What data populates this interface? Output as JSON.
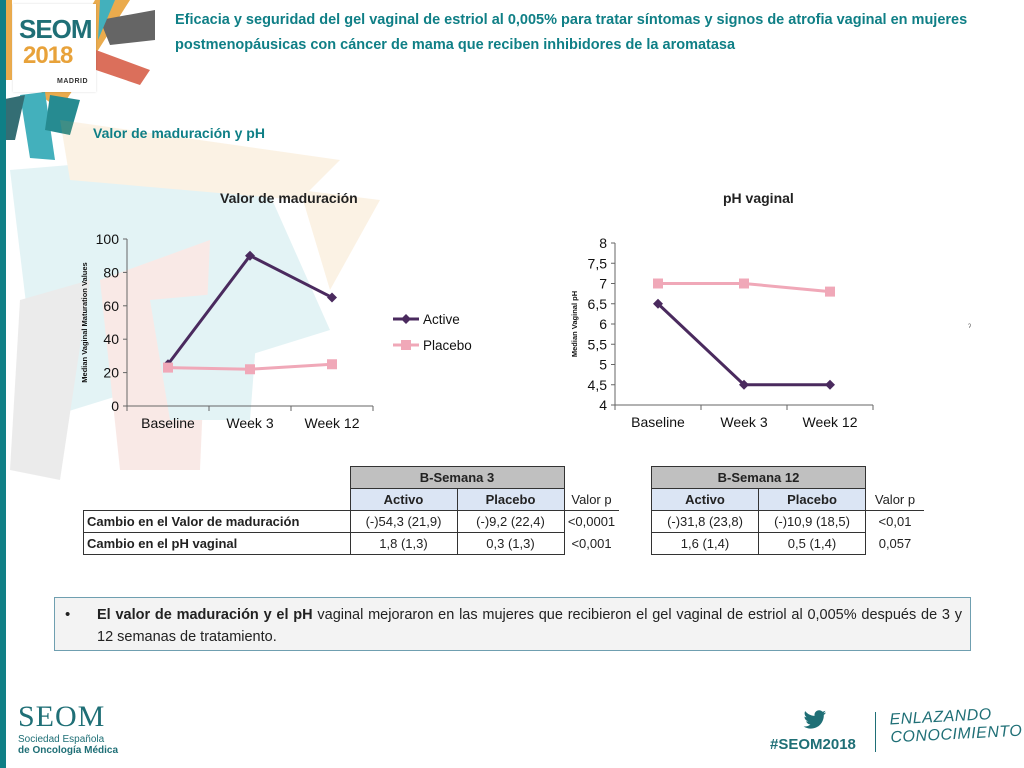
{
  "slide": {
    "title": "Eficacia y seguridad del gel vaginal de estriol al 0,005% para tratar síntomas y signos de atrofia vaginal en mujeres postmenopáusicas con cáncer de mama que reciben inhibidores de la aromatasa",
    "subtitle": "Valor de maduración y pH",
    "stray_mark": "ˀ"
  },
  "logo": {
    "brand": "SEOM",
    "year": "2018",
    "city": "MADRID"
  },
  "colors": {
    "active": "#4a2a5e",
    "placebo": "#f0a8b8",
    "accent": "#0f7f86"
  },
  "chart_data": [
    {
      "type": "line",
      "title": "Valor de maduración",
      "ylabel": "Median Vaginal Maturation Values",
      "categories": [
        "Baseline",
        "Week 3",
        "Week 12"
      ],
      "yticks": [
        "0",
        "20",
        "40",
        "60",
        "80",
        "100"
      ],
      "ylim": [
        0,
        100
      ],
      "series": [
        {
          "name": "Active",
          "values": [
            25,
            90,
            65
          ]
        },
        {
          "name": "Placebo",
          "values": [
            23,
            22,
            25
          ]
        }
      ],
      "legend": "right"
    },
    {
      "type": "line",
      "title": "pH vaginal",
      "ylabel": "Median Vaginal pH",
      "categories": [
        "Baseline",
        "Week 3",
        "Week 12"
      ],
      "yticks": [
        "4",
        "4,5",
        "5",
        "5,5",
        "6",
        "6,5",
        "7",
        "7,5",
        "8"
      ],
      "ylim": [
        4,
        8
      ],
      "series": [
        {
          "name": "Active",
          "values": [
            6.5,
            4.5,
            4.5
          ]
        },
        {
          "name": "Placebo",
          "values": [
            7.0,
            7.0,
            6.8
          ]
        }
      ]
    }
  ],
  "table1": {
    "group": "B-Semana 3",
    "col_active": "Activo",
    "col_placebo": "Placebo",
    "col_p": "Valor p",
    "rows": [
      {
        "label": "Cambio en el Valor de maduración",
        "active": "(-)54,3  (21,9)",
        "placebo": "(-)9,2  (22,4)",
        "p": "<0,0001"
      },
      {
        "label": "Cambio en el pH vaginal",
        "active": "1,8 (1,3)",
        "placebo": "0,3 (1,3)",
        "p": "<0,001"
      }
    ]
  },
  "table2": {
    "group": "B-Semana 12",
    "col_active": "Activo",
    "col_placebo": "Placebo",
    "col_p": "Valor p",
    "rows": [
      {
        "active": "(-)31,8  (23,8)",
        "placebo": "(-)10,9  (18,5)",
        "p": "<0,01"
      },
      {
        "active": "1,6 (1,4)",
        "placebo": "0,5 (1,4)",
        "p": "0,057"
      }
    ]
  },
  "note": {
    "bullet": "•",
    "bold": "El valor de maduración y el pH",
    "rest": " vaginal mejoraron en las mujeres que recibieron el gel vaginal de estriol al 0,005% después de 3 y 12 semanas de tratamiento."
  },
  "footer": {
    "brand": "SEOM",
    "line1": "Sociedad Española",
    "line2": "de Oncología Médica",
    "hashtag": "#SEOM2018",
    "slogan1": "ENLAZANDO",
    "slogan2": "CONOCIMIENTO",
    "twitter_icon": "twitter-bird-icon"
  }
}
